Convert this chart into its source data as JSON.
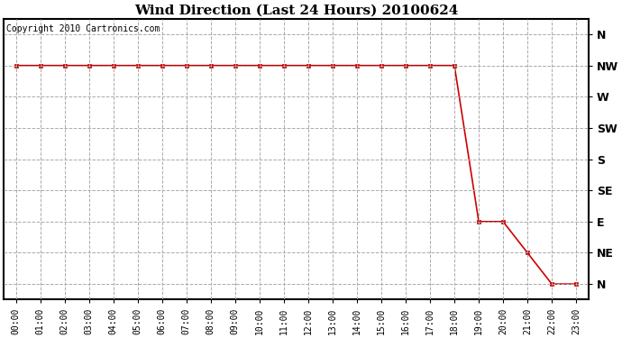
{
  "title": "Wind Direction (Last 24 Hours) 20100624",
  "copyright_text": "Copyright 2010 Cartronics.com",
  "background_color": "#ffffff",
  "line_color": "#cc0000",
  "marker": "s",
  "marker_size": 3,
  "x_labels": [
    "00:00",
    "01:00",
    "02:00",
    "03:00",
    "04:00",
    "05:00",
    "06:00",
    "07:00",
    "08:00",
    "09:00",
    "10:00",
    "11:00",
    "12:00",
    "13:00",
    "14:00",
    "15:00",
    "16:00",
    "17:00",
    "18:00",
    "19:00",
    "20:00",
    "21:00",
    "22:00",
    "23:00"
  ],
  "y_labels": [
    "N",
    "NW",
    "W",
    "SW",
    "S",
    "SE",
    "E",
    "NE",
    "N"
  ],
  "y_ticks": [
    8,
    7,
    6,
    5,
    4,
    3,
    2,
    1,
    0
  ],
  "data_times": [
    0,
    1,
    2,
    3,
    4,
    5,
    6,
    7,
    8,
    9,
    10,
    11,
    12,
    13,
    14,
    15,
    16,
    17,
    18,
    19,
    20,
    21,
    22,
    23
  ],
  "data_dirs": [
    7,
    7,
    7,
    7,
    7,
    7,
    7,
    7,
    7,
    7,
    7,
    7,
    7,
    7,
    7,
    7,
    7,
    7,
    7,
    2,
    2,
    1,
    0,
    0
  ],
  "grid_color": "#aaaaaa",
  "grid_style": "--",
  "title_fontsize": 11,
  "tick_fontsize": 7,
  "ylabel_fontsize": 9,
  "copyright_fontsize": 7
}
